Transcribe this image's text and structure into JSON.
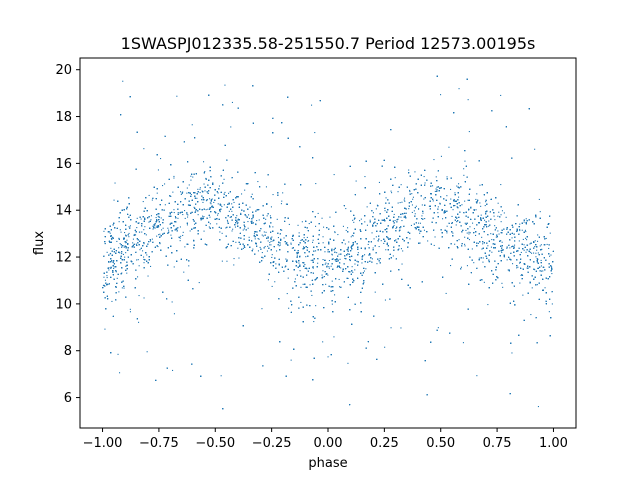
{
  "chart_data": {
    "type": "scatter",
    "title": "1SWASPJ012335.58-251550.7 Period 12573.00195s",
    "xlabel": "phase",
    "ylabel": "flux",
    "xlim": [
      -1.1,
      1.1
    ],
    "ylim": [
      4.7,
      20.5
    ],
    "xticks": [
      -1.0,
      -0.75,
      -0.5,
      -0.25,
      0.0,
      0.25,
      0.5,
      0.75,
      1.0
    ],
    "xtick_labels": [
      "−1.00",
      "−0.75",
      "−0.50",
      "−0.25",
      "0.00",
      "0.25",
      "0.50",
      "0.75",
      "1.00"
    ],
    "yticks": [
      6,
      8,
      10,
      12,
      14,
      16,
      18,
      20
    ],
    "ytick_labels": [
      "6",
      "8",
      "10",
      "12",
      "14",
      "16",
      "18",
      "20"
    ],
    "grid": false,
    "legend": "none",
    "marker_color": "#1f77b4",
    "series": [
      {
        "points_x": [
          -1.0,
          -0.9,
          -0.8,
          -0.7,
          -0.6,
          -0.5,
          -0.4,
          -0.3,
          -0.2,
          -0.1,
          0.0,
          0.1,
          0.2,
          0.3,
          0.4,
          0.5,
          0.6,
          0.7,
          0.8,
          0.9,
          1.0
        ],
        "points_y": [
          11.7,
          12.3,
          13.0,
          13.6,
          14.0,
          14.2,
          13.8,
          13.1,
          12.4,
          11.9,
          11.6,
          12.2,
          12.9,
          13.5,
          14.0,
          14.2,
          13.8,
          13.2,
          12.5,
          12.0,
          11.7
        ]
      }
    ]
  }
}
